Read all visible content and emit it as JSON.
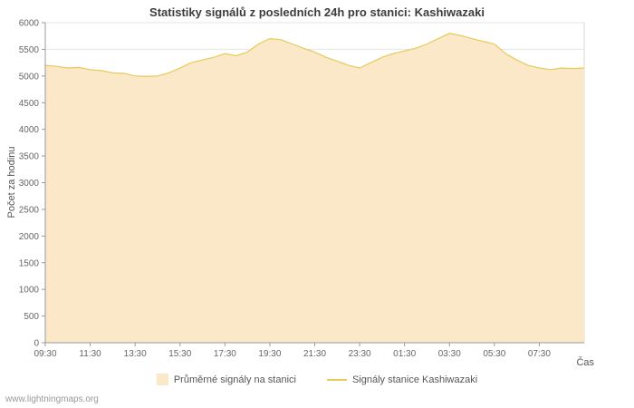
{
  "page": {
    "watermark": "www.lightningmaps.org"
  },
  "chart_data": {
    "type": "area",
    "title": "Statistiky signálů z posledních 24h pro stanici: Kashiwazaki",
    "xlabel": "Čas",
    "ylabel": "Počet za hodinu",
    "ylim": [
      0,
      6000
    ],
    "ytick_step": 500,
    "grid": true,
    "legend_position": "bottom",
    "xtick_every": 4,
    "x": [
      "09:30",
      "10:00",
      "10:30",
      "11:00",
      "11:30",
      "12:00",
      "12:30",
      "13:00",
      "13:30",
      "14:00",
      "14:30",
      "15:00",
      "15:30",
      "16:00",
      "16:30",
      "17:00",
      "17:30",
      "18:00",
      "18:30",
      "19:00",
      "19:30",
      "20:00",
      "20:30",
      "21:00",
      "21:30",
      "22:00",
      "22:30",
      "23:00",
      "23:30",
      "00:00",
      "00:30",
      "01:00",
      "01:30",
      "02:00",
      "02:30",
      "03:00",
      "03:30",
      "04:00",
      "04:30",
      "05:00",
      "05:30",
      "06:00",
      "06:30",
      "07:00",
      "07:30",
      "08:00",
      "08:30",
      "09:00",
      "09:30"
    ],
    "series": [
      {
        "name": "Průměrné signály na stanici",
        "type": "area",
        "color": "#fae8c8",
        "values": [
          5200,
          5180,
          5150,
          5160,
          5120,
          5100,
          5060,
          5050,
          5000,
          4990,
          5000,
          5060,
          5150,
          5250,
          5300,
          5350,
          5420,
          5380,
          5450,
          5600,
          5700,
          5680,
          5600,
          5520,
          5450,
          5350,
          5280,
          5200,
          5150,
          5250,
          5350,
          5420,
          5470,
          5520,
          5600,
          5700,
          5800,
          5760,
          5700,
          5650,
          5600,
          5420,
          5300,
          5200,
          5150,
          5120,
          5150,
          5140,
          5150
        ]
      },
      {
        "name": "Signály stanice Kashiwazaki",
        "type": "line",
        "color": "#e8c95a",
        "values": [
          5200,
          5180,
          5150,
          5160,
          5120,
          5100,
          5060,
          5050,
          5000,
          4990,
          5000,
          5060,
          5150,
          5250,
          5300,
          5350,
          5420,
          5380,
          5450,
          5600,
          5700,
          5680,
          5600,
          5520,
          5450,
          5350,
          5280,
          5200,
          5150,
          5250,
          5350,
          5420,
          5470,
          5520,
          5600,
          5700,
          5800,
          5760,
          5700,
          5650,
          5600,
          5420,
          5300,
          5200,
          5150,
          5120,
          5150,
          5140,
          5150
        ]
      }
    ]
  }
}
